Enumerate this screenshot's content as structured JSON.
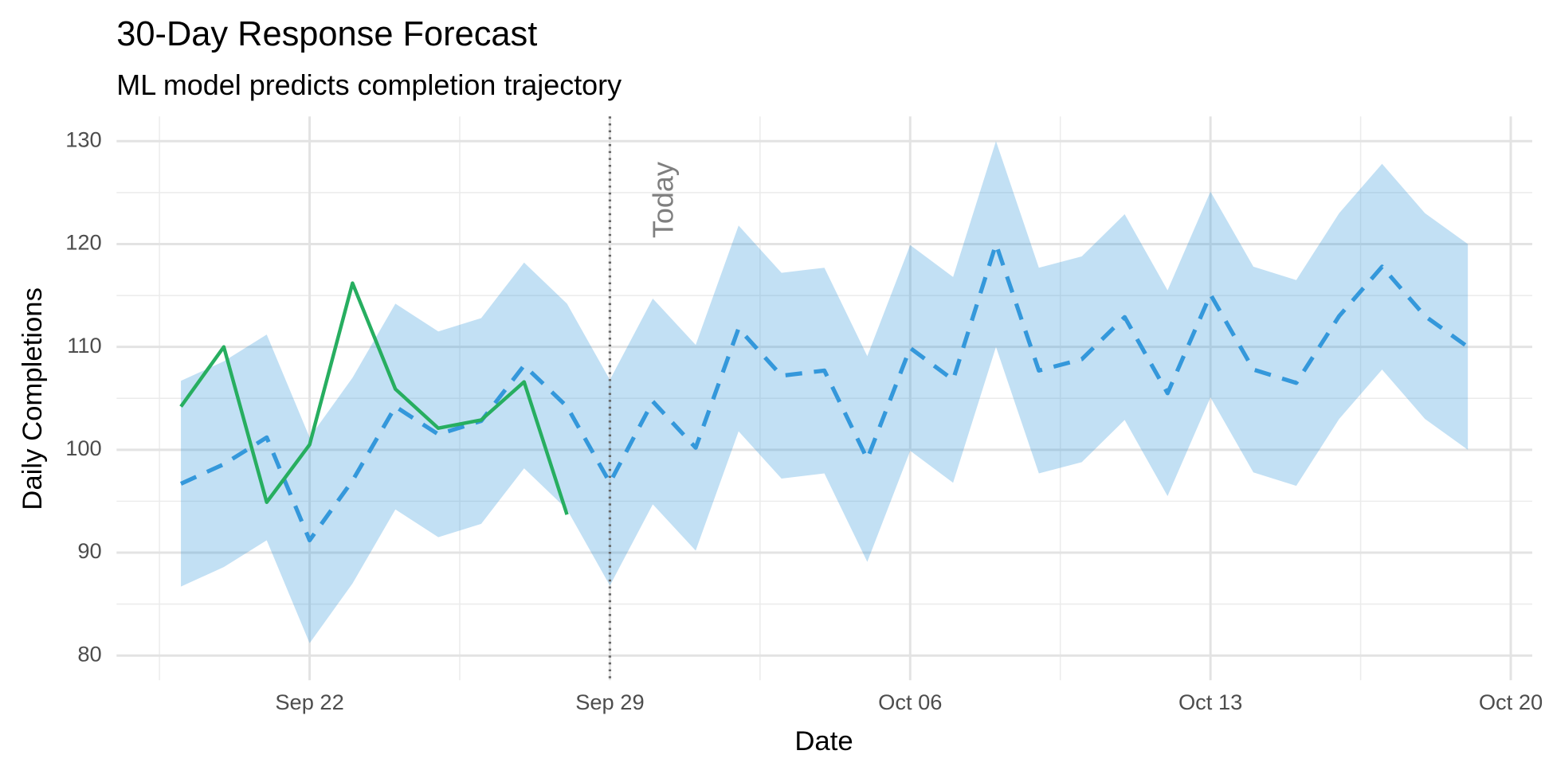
{
  "chart_data": {
    "type": "line",
    "title": "30-Day Response Forecast",
    "subtitle": "ML model predicts completion trajectory",
    "x_label": "Date",
    "y_label": "Daily Completions",
    "x": [
      "Sep 19",
      "Sep 20",
      "Sep 21",
      "Sep 22",
      "Sep 23",
      "Sep 24",
      "Sep 25",
      "Sep 26",
      "Sep 27",
      "Sep 28",
      "Sep 29",
      "Sep 30",
      "Oct 01",
      "Oct 02",
      "Oct 03",
      "Oct 04",
      "Oct 05",
      "Oct 06",
      "Oct 07",
      "Oct 08",
      "Oct 09",
      "Oct 10",
      "Oct 11",
      "Oct 12",
      "Oct 13",
      "Oct 14",
      "Oct 15",
      "Oct 16",
      "Oct 17",
      "Oct 18",
      "Oct 19"
    ],
    "band": {
      "color": "#3498db",
      "opacity": 0.3,
      "lower": [
        86.7,
        88.6,
        91.2,
        81.2,
        87.0,
        94.2,
        91.5,
        92.8,
        98.2,
        94.2,
        86.8,
        94.7,
        90.2,
        101.8,
        97.2,
        97.7,
        89.1,
        99.9,
        96.8,
        110.0,
        97.7,
        98.8,
        102.9,
        95.5,
        105.1,
        97.8,
        96.5,
        103.0,
        107.8,
        103.0,
        100.0
      ],
      "upper": [
        106.7,
        108.6,
        111.2,
        101.2,
        107.0,
        114.2,
        111.5,
        112.8,
        118.2,
        114.2,
        106.8,
        114.7,
        110.2,
        121.8,
        117.2,
        117.7,
        109.1,
        119.9,
        116.8,
        130.0,
        117.7,
        118.8,
        122.9,
        115.5,
        125.1,
        117.8,
        116.5,
        123.0,
        127.8,
        123.0,
        120.0
      ]
    },
    "series": [
      {
        "color": "#27ae60",
        "dash": false,
        "values": [
          104.2,
          110.0,
          94.9,
          100.5,
          116.2,
          105.9,
          102.1,
          102.9,
          106.6,
          93.7,
          null,
          null,
          null,
          null,
          null,
          null,
          null,
          null,
          null,
          null,
          null,
          null,
          null,
          null,
          null,
          null,
          null,
          null,
          null,
          null,
          null
        ]
      },
      {
        "color": "#3498db",
        "dash": true,
        "values": [
          96.7,
          98.6,
          101.2,
          91.2,
          97.0,
          104.2,
          101.5,
          102.8,
          108.2,
          104.2,
          96.8,
          104.7,
          100.2,
          111.8,
          107.2,
          107.7,
          99.1,
          109.9,
          106.8,
          120.0,
          107.7,
          108.8,
          112.9,
          105.5,
          115.1,
          107.8,
          106.5,
          113.0,
          117.8,
          113.0,
          110.0
        ]
      }
    ],
    "xticks": [
      {
        "value": "Sep 22",
        "label": "Sep 22"
      },
      {
        "value": "Sep 29",
        "label": "Sep 29"
      },
      {
        "value": "Oct 06",
        "label": "Oct 06"
      },
      {
        "value": "Oct 13",
        "label": "Oct 13"
      },
      {
        "value": "Oct 20",
        "label": "Oct 20"
      }
    ],
    "ylim": [
      77.6,
      132.4
    ],
    "yticks": [
      80,
      90,
      100,
      110,
      120,
      130
    ],
    "grid": true,
    "vline": {
      "x": "Sep 29",
      "text": "Today",
      "color": "#666666"
    }
  }
}
